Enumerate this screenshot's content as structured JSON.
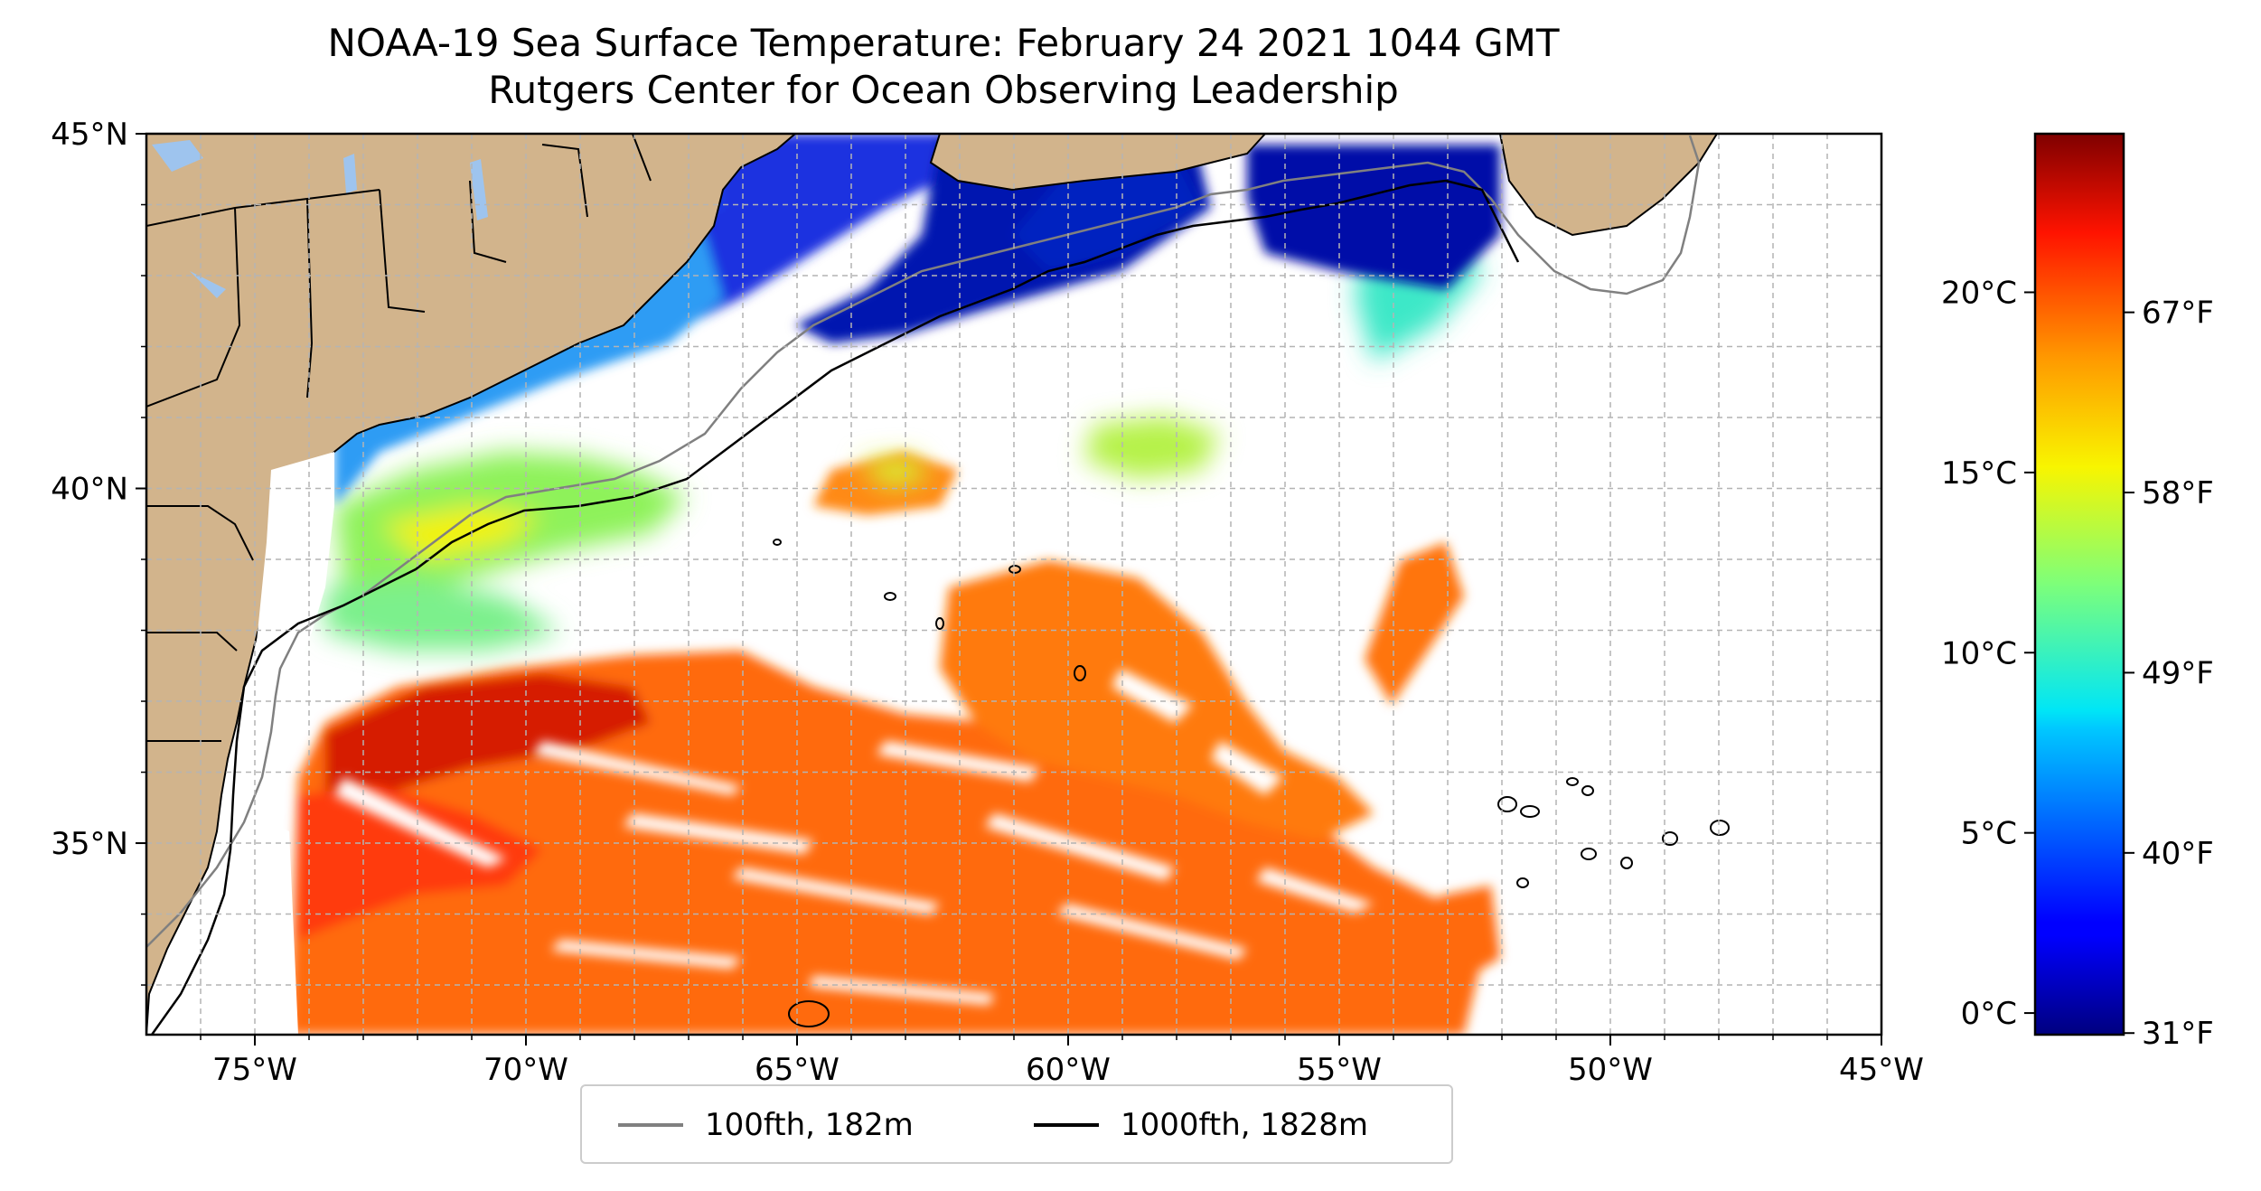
{
  "title": "NOAA-19 Sea Surface Temperature: February 24 2021 1044 GMT",
  "subtitle": "Rutgers Center for Ocean Observing Leadership",
  "map": {
    "lon_range": [
      -77,
      -45
    ],
    "lat_range": [
      32.3,
      45
    ],
    "lon_ticks": [
      "75°W",
      "70°W",
      "65°W",
      "60°W",
      "55°W",
      "50°W",
      "45°W"
    ],
    "lat_ticks": [
      "45°N",
      "40°N",
      "35°N"
    ],
    "land_color": "#d2b48c",
    "lake_color": "#9ec4ee",
    "grid": true
  },
  "legend": {
    "items": [
      {
        "label": "100fth, 182m",
        "color": "#808080"
      },
      {
        "label": "1000fth, 1828m",
        "color": "#000000"
      }
    ]
  },
  "colorbar": {
    "colormap": "jet",
    "celsius_ticks": [
      "20°C",
      "15°C",
      "10°C",
      "5°C",
      "0°C"
    ],
    "fahrenheit_ticks": [
      "67°F",
      "58°F",
      "49°F",
      "40°F",
      "31°F"
    ],
    "celsius_values": [
      20,
      15,
      10,
      5,
      0
    ],
    "fahrenheit_values": [
      67,
      58,
      49,
      40,
      31
    ],
    "range_c": [
      -0.6,
      24.4
    ]
  }
}
